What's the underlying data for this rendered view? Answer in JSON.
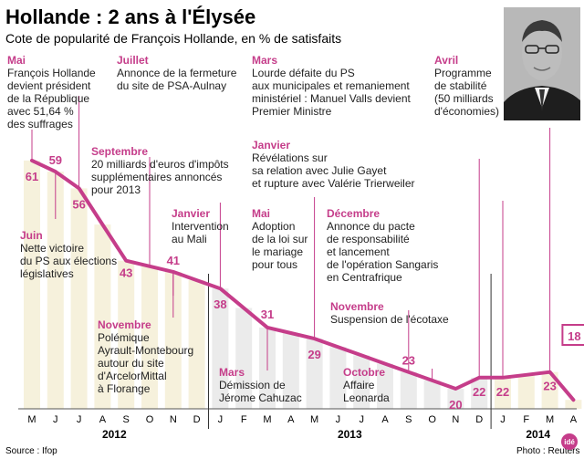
{
  "header": {
    "title": "Hollande : 2 ans à l'Élysée",
    "subtitle": "Cote de popularité de François Hollande, en % de satisfaits"
  },
  "footer": {
    "source": "Source : Ifop",
    "photo": "Photo : Reuters",
    "logo": "idé"
  },
  "colors": {
    "line": "#c53d8a",
    "month_label": "#c53d8a",
    "bar": "#f6f1dc",
    "bar_alt": "#ebebeb",
    "axis": "#555555",
    "leader": "#c53d8a",
    "highlight_box": "#c53d8a"
  },
  "chart_data": {
    "type": "line",
    "title": "Hollande : 2 ans à l'Élysée",
    "subtitle": "Cote de popularité de François Hollande, en % de satisfaits",
    "x": [
      "2012-05",
      "2012-06",
      "2012-07",
      "2012-08",
      "2012-09",
      "2012-10",
      "2012-11",
      "2012-12",
      "2013-01",
      "2013-02",
      "2013-03",
      "2013-04",
      "2013-05",
      "2013-06",
      "2013-07",
      "2013-08",
      "2013-09",
      "2013-10",
      "2013-11",
      "2013-12",
      "2014-01",
      "2014-02",
      "2014-03",
      "2014-04"
    ],
    "tick_labels": [
      "M",
      "J",
      "J",
      "A",
      "S",
      "O",
      "N",
      "D",
      "J",
      "F",
      "M",
      "A",
      "M",
      "J",
      "J",
      "A",
      "S",
      "O",
      "N",
      "D",
      "J",
      "F",
      "M",
      "A"
    ],
    "years": [
      {
        "label": "2012",
        "from": 0,
        "to": 7
      },
      {
        "label": "2013",
        "from": 8,
        "to": 19
      },
      {
        "label": "2014",
        "from": 20,
        "to": 23
      }
    ],
    "series": [
      {
        "values": [
          61,
          59,
          56,
          null,
          43,
          null,
          41,
          null,
          38,
          null,
          31,
          null,
          29,
          null,
          null,
          null,
          23,
          null,
          20,
          22,
          22,
          null,
          23,
          18
        ]
      }
    ],
    "shaded_interval_for_unlabeled_points": "interpolated",
    "unit": "%",
    "ylim": [
      0,
      70
    ]
  },
  "values_drawn": [
    {
      "i": 0,
      "v": 61,
      "label": "61"
    },
    {
      "i": 1,
      "v": 59,
      "label": "59"
    },
    {
      "i": 2,
      "v": 56,
      "label": "56"
    },
    {
      "i": 4,
      "v": 43,
      "label": "43"
    },
    {
      "i": 6,
      "v": 41,
      "label": "41"
    },
    {
      "i": 8,
      "v": 38,
      "label": "38"
    },
    {
      "i": 10,
      "v": 31,
      "label": "31"
    },
    {
      "i": 12,
      "v": 29,
      "label": "29"
    },
    {
      "i": 16,
      "v": 23,
      "label": "23"
    },
    {
      "i": 18,
      "v": 20,
      "label": "20"
    },
    {
      "i": 19,
      "v": 22,
      "label": "22"
    },
    {
      "i": 20,
      "v": 22,
      "label": "22"
    },
    {
      "i": 22,
      "v": 23,
      "label": "23"
    },
    {
      "i": 23,
      "v": 18,
      "label": "18"
    }
  ],
  "annotations": [
    {
      "month": "Mai",
      "lines": [
        "François Hollande",
        "devient président",
        "de la République",
        "avec 51,64 %",
        "des suffrages"
      ]
    },
    {
      "month": "Juillet",
      "lines": [
        "Annonce de la fermeture",
        "du site de PSA-Aulnay"
      ]
    },
    {
      "month": "Mars",
      "lines": [
        "Lourde défaite du PS",
        "aux municipales et remaniement",
        "ministériel : Manuel Valls devient",
        "Premier Ministre"
      ]
    },
    {
      "month": "Avril",
      "lines": [
        "Programme",
        "de stabilité",
        "(50 milliards",
        "d'économies)"
      ]
    },
    {
      "month": "Septembre",
      "lines": [
        "20 milliards d'euros d'impôts",
        "supplémentaires annoncés",
        "pour 2013"
      ]
    },
    {
      "month": "Janvier",
      "lines": [
        "Révélations sur",
        "sa relation avec Julie Gayet",
        "et rupture avec Valérie Trierweiler"
      ]
    },
    {
      "month": "Janvier",
      "lines": [
        "Intervention",
        "au Mali"
      ]
    },
    {
      "month": "Mai",
      "lines": [
        "Adoption",
        "de la loi sur",
        "le mariage",
        "pour tous"
      ]
    },
    {
      "month": "Décembre",
      "lines": [
        "Annonce du pacte",
        "de responsabilité",
        "et lancement",
        "de l'opération Sangaris",
        "en Centrafrique"
      ]
    },
    {
      "month": "Juin",
      "lines": [
        "Nette victoire",
        "du PS aux élections",
        "législatives"
      ]
    },
    {
      "month": "Novembre",
      "lines": [
        "Polémique",
        "Ayrault-Montebourg",
        "autour du site",
        "d'ArcelorMittal",
        "à Florange"
      ]
    },
    {
      "month": "Novembre",
      "lines": [
        "Suspension de l'écotaxe"
      ]
    },
    {
      "month": "Mars",
      "lines": [
        "Démission de",
        "Jérome Cahuzac"
      ]
    },
    {
      "month": "Octobre",
      "lines": [
        "Affaire",
        "Leonarda"
      ]
    }
  ]
}
